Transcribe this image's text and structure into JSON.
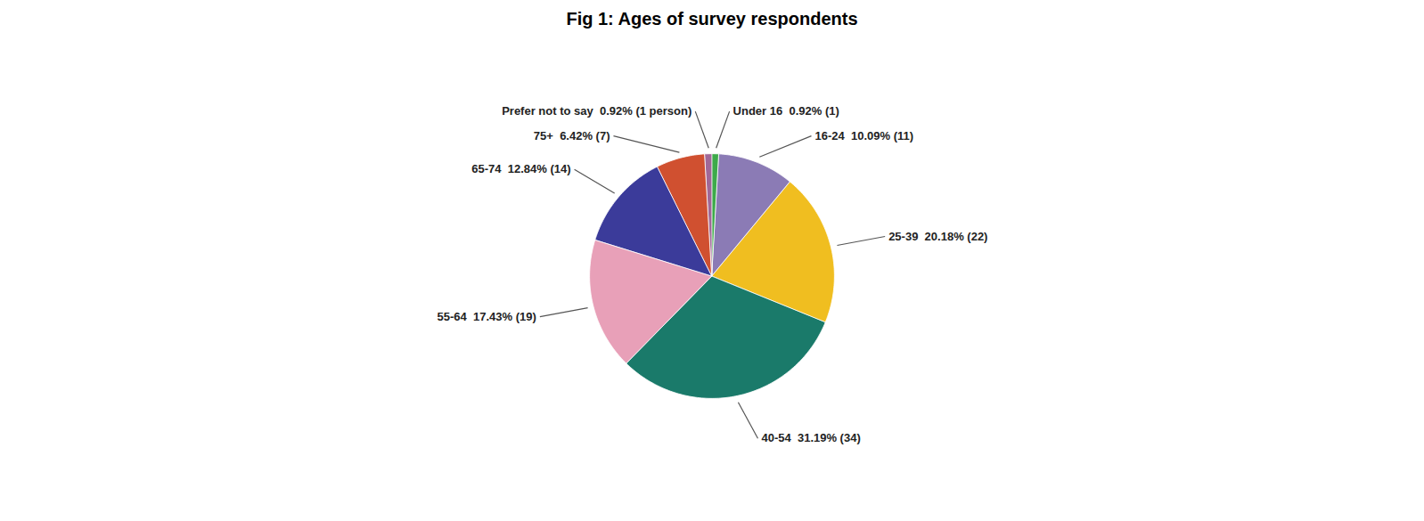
{
  "chart_data": {
    "type": "pie",
    "title": "Fig 1: Ages of survey respondents",
    "categories": [
      "Under 16",
      "16-24",
      "25-39",
      "40-54",
      "55-64",
      "65-74",
      "75+",
      "Prefer not to say"
    ],
    "values": [
      0.92,
      10.09,
      20.18,
      31.19,
      17.43,
      12.84,
      6.42,
      0.92
    ],
    "colors": [
      "#3DAA4A",
      "#8B7BB5",
      "#F0BE20",
      "#1A7A6A",
      "#E8A0B8",
      "#3B3B9A",
      "#D05030",
      "#A06898"
    ],
    "value_labels": [
      "Under 16  0.92% (1)",
      "16-24  10.09% (11)",
      "25-39  20.18% (22)",
      "40-54  31.19% (34)",
      "55-64  17.43% (19)",
      "65-74  12.84% (14)",
      "75+  6.42% (7)",
      "Prefer not to say  0.92% (1 person)"
    ],
    "data_labels": true,
    "tick_labels": false
  }
}
